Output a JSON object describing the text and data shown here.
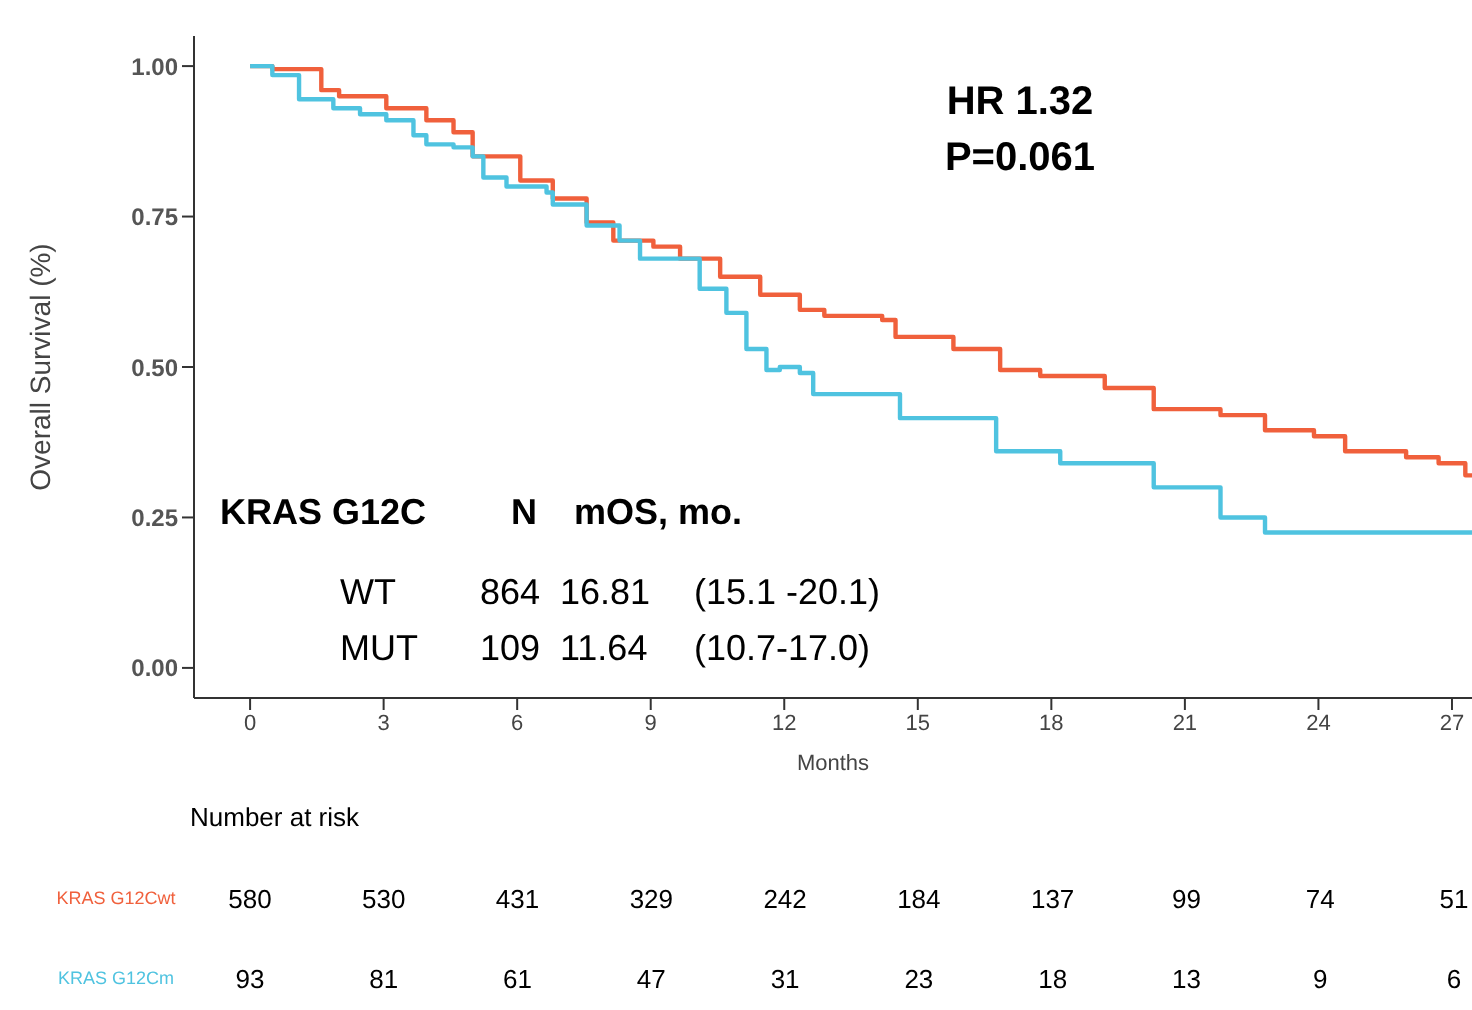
{
  "chart_data": [
    {
      "type": "step",
      "xlabel": "Months",
      "ylabel": "Overall Survival (%)",
      "xlim": [
        -1.26,
        27.45
      ],
      "ylim": [
        -0.05,
        1.05
      ],
      "xticks": [
        0,
        3,
        6,
        9,
        12,
        15,
        18,
        21,
        24,
        27
      ],
      "yticks": [
        {
          "value": 0,
          "label": "0.00"
        },
        {
          "value": 0.25,
          "label": "0.25"
        },
        {
          "value": 0.5,
          "label": "0.50"
        },
        {
          "value": 0.75,
          "label": "0.75"
        },
        {
          "value": 1,
          "label": "1.00"
        }
      ],
      "grid": false,
      "legend": false,
      "marker": "none",
      "line_style": "solid",
      "annotations": [
        "HR 1.32",
        "P=0.061",
        "KRAS G12C",
        "N",
        "mOS, mo.",
        "WT",
        "864",
        "16.81",
        "(15.1 -20.1)",
        "MUT",
        "109",
        "11.64",
        "(10.7-17.0)"
      ],
      "series": [
        {
          "color": "#f0603c",
          "x": [
            0,
            0.5,
            1.6,
            2.0,
            3.06,
            3.96,
            4.57,
            5.0,
            6.07,
            6.8,
            7.56,
            8.16,
            9.06,
            9.66,
            10.56,
            11.46,
            12.35,
            12.9,
            14.2,
            14.5,
            15.8,
            16.85,
            17.75,
            19.2,
            20.3,
            21.8,
            22.8,
            23.9,
            24.6,
            25.97,
            26.7,
            27.3,
            27.45
          ],
          "values": [
            1,
            0.995,
            0.96,
            0.95,
            0.93,
            0.91,
            0.89,
            0.85,
            0.81,
            0.78,
            0.74,
            0.71,
            0.7,
            0.68,
            0.65,
            0.62,
            0.595,
            0.585,
            0.578,
            0.55,
            0.53,
            0.495,
            0.485,
            0.465,
            0.43,
            0.42,
            0.395,
            0.385,
            0.36,
            0.35,
            0.34,
            0.32,
            0.32
          ]
        },
        {
          "color": "#4fc3e0",
          "x": [
            0,
            0.5,
            1.1,
            1.87,
            2.47,
            3.06,
            3.67,
            3.96,
            4.57,
            5.0,
            5.24,
            5.76,
            6.66,
            6.8,
            7.56,
            8.3,
            8.76,
            9.66,
            10.1,
            10.7,
            11.15,
            11.6,
            11.9,
            12.35,
            12.65,
            14.6,
            16.76,
            18.2,
            20.3,
            21.8,
            22.8,
            27.45
          ],
          "values": [
            1,
            0.985,
            0.945,
            0.93,
            0.92,
            0.91,
            0.885,
            0.87,
            0.865,
            0.85,
            0.815,
            0.8,
            0.79,
            0.77,
            0.735,
            0.71,
            0.68,
            0.68,
            0.63,
            0.59,
            0.53,
            0.495,
            0.5,
            0.49,
            0.455,
            0.415,
            0.36,
            0.34,
            0.3,
            0.25,
            0.225,
            0.225
          ]
        }
      ]
    },
    {
      "type": "other",
      "title": "Number at risk",
      "annotations": [
        "580",
        "530",
        "431",
        "329",
        "242",
        "184",
        "137",
        "99",
        "74",
        "51",
        "93",
        "81",
        "61",
        "47",
        "31",
        "23",
        "18",
        "13",
        "9",
        "6"
      ],
      "series": [
        {
          "name": "KRAS G12Cwt",
          "color": "#f0603c"
        },
        {
          "name": "KRAS G12Cm",
          "color": "#4fc3e0"
        }
      ]
    }
  ]
}
